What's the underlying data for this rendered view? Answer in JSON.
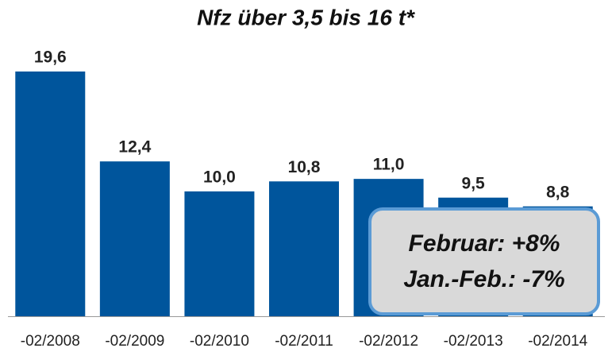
{
  "chart_data": {
    "type": "bar",
    "title": "Nfz über 3,5 bis 16 t*",
    "categories": [
      "-02/2008",
      "-02/2009",
      "-02/2010",
      "-02/2011",
      "-02/2012",
      "-02/2013",
      "-02/2014"
    ],
    "values": [
      19.6,
      12.4,
      10.0,
      10.8,
      11.0,
      9.5,
      8.8
    ],
    "value_labels": [
      "19,6",
      "12,4",
      "10,0",
      "10,8",
      "11,0",
      "9,5",
      "8,8"
    ],
    "color": "#00559c",
    "annotations": [
      "Februar: +8%",
      "Jan.-Feb.: -7%"
    ]
  }
}
